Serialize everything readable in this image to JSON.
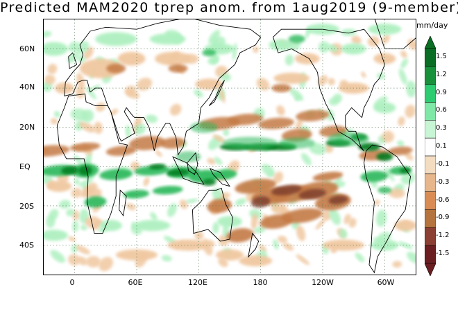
{
  "title": "Predicted MAM2020 tprep anom. from 1aug2019 (9-member)",
  "units": "mm/day",
  "lat_ticks": [
    "60N",
    "40N",
    "20N",
    "EQ",
    "20S",
    "40S"
  ],
  "lon_ticks": [
    "0",
    "60E",
    "120E",
    "180",
    "120W",
    "60W"
  ],
  "colorbar": {
    "labels": [
      "1.5",
      "1.2",
      "0.9",
      "0.6",
      "0.3",
      "0.1",
      "-0.1",
      "-0.3",
      "-0.6",
      "-0.9",
      "-1.2",
      "-1.5"
    ],
    "colors": [
      "#0a6e24",
      "#18913a",
      "#2ecc71",
      "#7fe8a6",
      "#c8f5d4",
      "#ffffff",
      "#f3dcc0",
      "#e7b68a",
      "#d98d55",
      "#b5743e",
      "#8c3f33",
      "#6b1f22"
    ]
  },
  "palette": {
    "grid": "#5a7a5a",
    "coast": "#000000",
    "wet_strong": "#007a1f",
    "wet": "#2bb85a",
    "wet_light": "#aef0c0",
    "dry_light": "#f0c8a0",
    "dry": "#c47a45",
    "dry_strong": "#7a3a2a"
  }
}
